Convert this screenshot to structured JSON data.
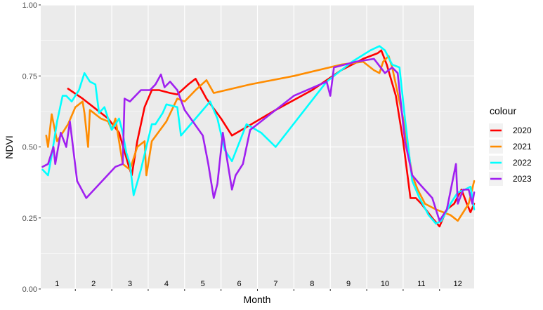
{
  "chart_data": {
    "type": "line",
    "xlabel": "Month",
    "ylabel": "NDVI",
    "ylim": [
      0,
      1
    ],
    "xlim": [
      0.55,
      12.45
    ],
    "y_ticks": [
      0,
      0.25,
      0.5,
      0.75,
      1
    ],
    "y_tick_labels": [
      "0.00",
      "0.25",
      "0.50",
      "0.75",
      "1.00"
    ],
    "x_categories": [
      "1",
      "2",
      "3",
      "4",
      "5",
      "6",
      "7",
      "8",
      "9",
      "10",
      "11",
      "12"
    ],
    "legend_title": "colour",
    "legend_position": "right",
    "grid": true,
    "series": [
      {
        "name": "2020",
        "color": "#ff0000",
        "points": [
          [
            1.3,
            0.705
          ],
          [
            1.7,
            0.67
          ],
          [
            2.0,
            0.64
          ],
          [
            2.4,
            0.6
          ],
          [
            2.7,
            0.55
          ],
          [
            2.95,
            0.44
          ],
          [
            3.05,
            0.4
          ],
          [
            3.2,
            0.52
          ],
          [
            3.4,
            0.64
          ],
          [
            3.6,
            0.7
          ],
          [
            3.8,
            0.7
          ],
          [
            4.1,
            0.69
          ],
          [
            4.3,
            0.685
          ],
          [
            4.6,
            0.72
          ],
          [
            4.8,
            0.74
          ],
          [
            5.1,
            0.67
          ],
          [
            5.5,
            0.6
          ],
          [
            5.8,
            0.54
          ],
          [
            6.2,
            0.57
          ],
          [
            7.0,
            0.63
          ],
          [
            8.0,
            0.7
          ],
          [
            8.8,
            0.77
          ],
          [
            9.4,
            0.81
          ],
          [
            9.8,
            0.83
          ],
          [
            9.9,
            0.84
          ],
          [
            10.05,
            0.79
          ],
          [
            10.3,
            0.68
          ],
          [
            10.5,
            0.52
          ],
          [
            10.7,
            0.32
          ],
          [
            10.85,
            0.32
          ],
          [
            11.0,
            0.3
          ],
          [
            11.3,
            0.25
          ],
          [
            11.5,
            0.22
          ],
          [
            11.7,
            0.28
          ],
          [
            11.9,
            0.3
          ],
          [
            12.1,
            0.35
          ],
          [
            12.25,
            0.3
          ],
          [
            12.35,
            0.27
          ],
          [
            12.45,
            0.3
          ]
        ]
      },
      {
        "name": "2021",
        "color": "#ff8c00",
        "points": [
          [
            0.7,
            0.54
          ],
          [
            0.75,
            0.5
          ],
          [
            0.85,
            0.615
          ],
          [
            1.0,
            0.52
          ],
          [
            1.3,
            0.58
          ],
          [
            1.5,
            0.64
          ],
          [
            1.7,
            0.66
          ],
          [
            1.75,
            0.62
          ],
          [
            1.85,
            0.5
          ],
          [
            1.9,
            0.63
          ],
          [
            2.2,
            0.6
          ],
          [
            2.4,
            0.59
          ],
          [
            2.5,
            0.56
          ],
          [
            2.6,
            0.6
          ],
          [
            2.8,
            0.44
          ],
          [
            3.0,
            0.42
          ],
          [
            3.2,
            0.5
          ],
          [
            3.4,
            0.52
          ],
          [
            3.45,
            0.4
          ],
          [
            3.6,
            0.52
          ],
          [
            4.0,
            0.59
          ],
          [
            4.3,
            0.67
          ],
          [
            4.5,
            0.66
          ],
          [
            4.8,
            0.7
          ],
          [
            5.1,
            0.735
          ],
          [
            5.3,
            0.69
          ],
          [
            6.3,
            0.72
          ],
          [
            7.5,
            0.75
          ],
          [
            8.8,
            0.79
          ],
          [
            9.4,
            0.8
          ],
          [
            9.7,
            0.77
          ],
          [
            9.85,
            0.76
          ],
          [
            9.95,
            0.8
          ],
          [
            10.1,
            0.82
          ],
          [
            10.2,
            0.78
          ],
          [
            10.5,
            0.6
          ],
          [
            10.75,
            0.4
          ],
          [
            10.9,
            0.35
          ],
          [
            11.1,
            0.3
          ],
          [
            11.4,
            0.28
          ],
          [
            11.8,
            0.26
          ],
          [
            12.0,
            0.24
          ],
          [
            12.3,
            0.3
          ],
          [
            12.45,
            0.38
          ]
        ]
      },
      {
        "name": "2022",
        "color": "#00ffff",
        "points": [
          [
            0.6,
            0.42
          ],
          [
            0.75,
            0.4
          ],
          [
            0.85,
            0.47
          ],
          [
            1.0,
            0.59
          ],
          [
            1.15,
            0.68
          ],
          [
            1.25,
            0.68
          ],
          [
            1.4,
            0.66
          ],
          [
            1.6,
            0.7
          ],
          [
            1.75,
            0.76
          ],
          [
            1.9,
            0.73
          ],
          [
            2.05,
            0.72
          ],
          [
            2.15,
            0.62
          ],
          [
            2.3,
            0.64
          ],
          [
            2.5,
            0.56
          ],
          [
            2.7,
            0.6
          ],
          [
            2.8,
            0.55
          ],
          [
            2.9,
            0.48
          ],
          [
            3.0,
            0.44
          ],
          [
            3.1,
            0.33
          ],
          [
            3.3,
            0.42
          ],
          [
            3.6,
            0.58
          ],
          [
            3.7,
            0.58
          ],
          [
            3.9,
            0.62
          ],
          [
            4.0,
            0.65
          ],
          [
            4.3,
            0.64
          ],
          [
            4.4,
            0.54
          ],
          [
            4.8,
            0.6
          ],
          [
            5.2,
            0.66
          ],
          [
            5.4,
            0.6
          ],
          [
            5.6,
            0.49
          ],
          [
            5.8,
            0.45
          ],
          [
            6.2,
            0.58
          ],
          [
            6.6,
            0.55
          ],
          [
            7.0,
            0.5
          ],
          [
            8.4,
            0.73
          ],
          [
            9.1,
            0.8
          ],
          [
            9.6,
            0.84
          ],
          [
            9.85,
            0.855
          ],
          [
            10.0,
            0.84
          ],
          [
            10.2,
            0.79
          ],
          [
            10.4,
            0.78
          ],
          [
            10.55,
            0.6
          ],
          [
            10.75,
            0.38
          ],
          [
            10.95,
            0.32
          ],
          [
            11.2,
            0.26
          ],
          [
            11.4,
            0.23
          ],
          [
            11.55,
            0.24
          ],
          [
            11.8,
            0.3
          ],
          [
            12.0,
            0.34
          ],
          [
            12.2,
            0.35
          ],
          [
            12.35,
            0.36
          ],
          [
            12.45,
            0.28
          ]
        ]
      },
      {
        "name": "2023",
        "color": "#a020f0",
        "points": [
          [
            0.6,
            0.43
          ],
          [
            0.75,
            0.44
          ],
          [
            0.9,
            0.5
          ],
          [
            0.95,
            0.44
          ],
          [
            1.1,
            0.55
          ],
          [
            1.25,
            0.5
          ],
          [
            1.35,
            0.59
          ],
          [
            1.55,
            0.38
          ],
          [
            1.8,
            0.32
          ],
          [
            2.6,
            0.43
          ],
          [
            2.8,
            0.44
          ],
          [
            2.85,
            0.67
          ],
          [
            3.0,
            0.66
          ],
          [
            3.3,
            0.7
          ],
          [
            3.55,
            0.7
          ],
          [
            3.7,
            0.72
          ],
          [
            3.85,
            0.755
          ],
          [
            3.95,
            0.71
          ],
          [
            4.1,
            0.73
          ],
          [
            4.3,
            0.7
          ],
          [
            4.5,
            0.63
          ],
          [
            5.0,
            0.54
          ],
          [
            5.15,
            0.44
          ],
          [
            5.3,
            0.32
          ],
          [
            5.4,
            0.37
          ],
          [
            5.55,
            0.55
          ],
          [
            5.65,
            0.47
          ],
          [
            5.8,
            0.35
          ],
          [
            5.9,
            0.4
          ],
          [
            6.1,
            0.44
          ],
          [
            6.3,
            0.56
          ],
          [
            6.5,
            0.58
          ],
          [
            7.5,
            0.68
          ],
          [
            8.4,
            0.73
          ],
          [
            8.5,
            0.68
          ],
          [
            8.6,
            0.78
          ],
          [
            9.2,
            0.8
          ],
          [
            9.7,
            0.81
          ],
          [
            10.0,
            0.76
          ],
          [
            10.2,
            0.78
          ],
          [
            10.35,
            0.76
          ],
          [
            10.55,
            0.52
          ],
          [
            10.75,
            0.4
          ],
          [
            10.95,
            0.37
          ],
          [
            11.3,
            0.32
          ],
          [
            11.5,
            0.24
          ],
          [
            11.7,
            0.28
          ],
          [
            11.95,
            0.44
          ],
          [
            12.0,
            0.3
          ],
          [
            12.15,
            0.35
          ],
          [
            12.3,
            0.35
          ],
          [
            12.4,
            0.3
          ],
          [
            12.45,
            0.34
          ]
        ]
      }
    ]
  }
}
